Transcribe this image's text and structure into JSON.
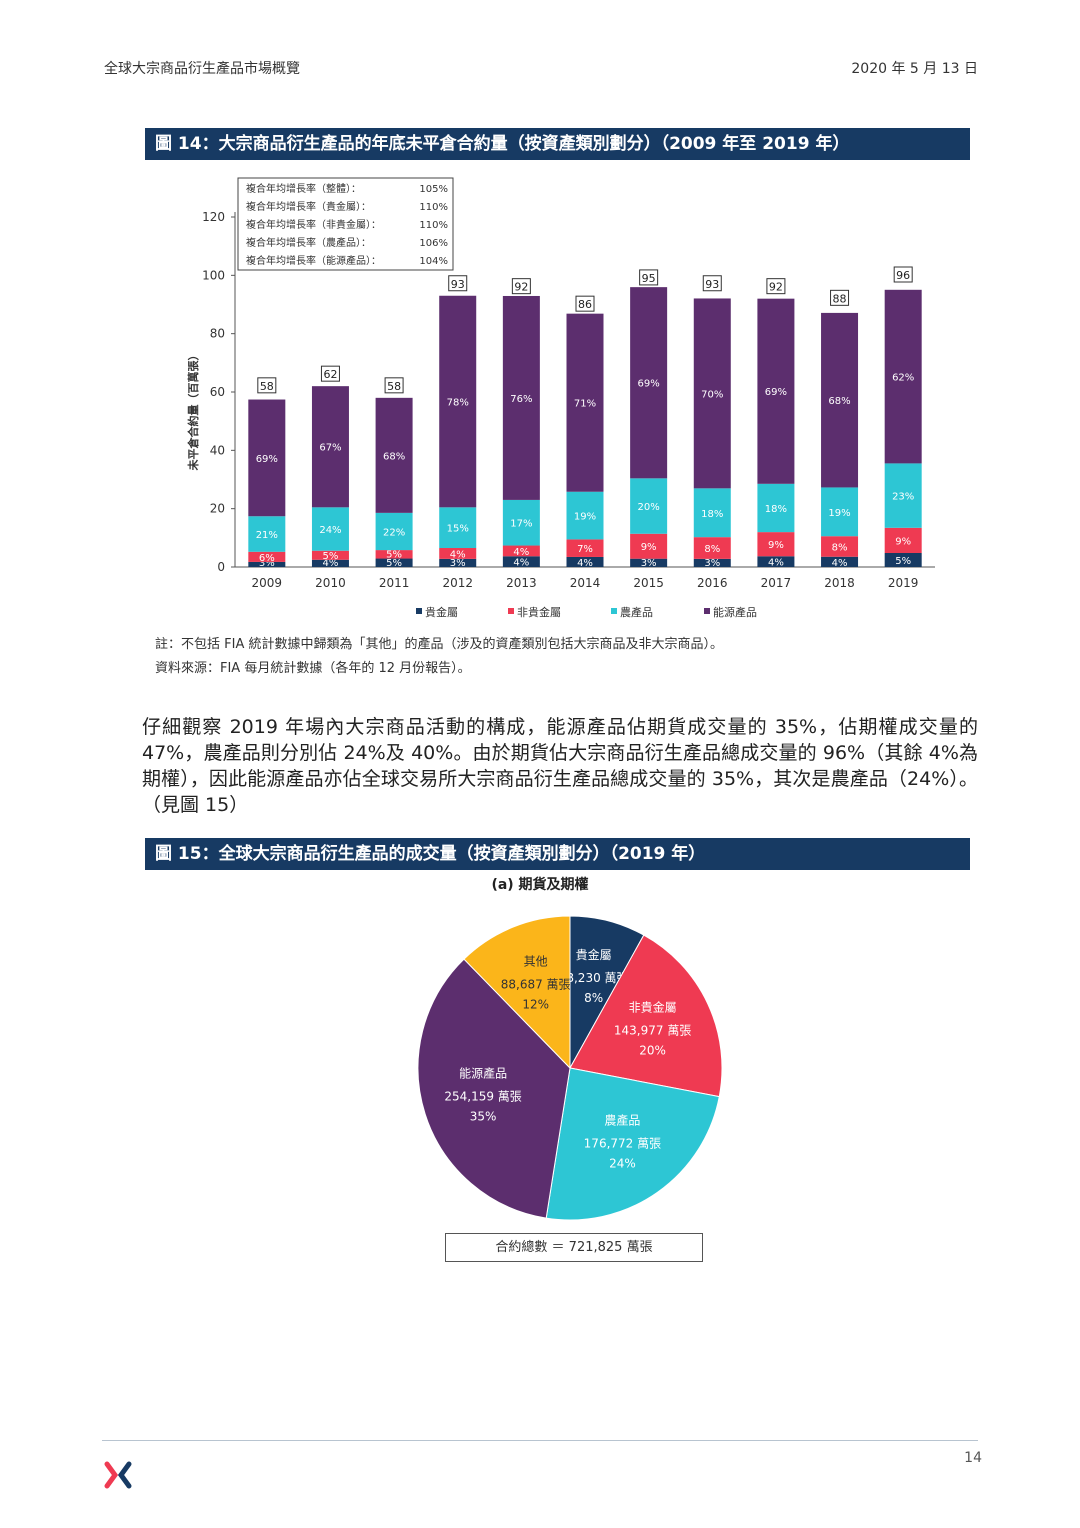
{
  "header": {
    "left": "全球大宗商品衍生產品市場概覽",
    "right": "2020 年 5 月 13 日"
  },
  "figure14": {
    "title": "圖 14：大宗商品衍生產品的年底未平倉合約量（按資產類別劃分）（2009 年至 2019 年）",
    "cagr_box": [
      {
        "label": "複合年均增長率（整體）：",
        "value": "105%"
      },
      {
        "label": "複合年均增長率（貴金屬）：",
        "value": "110%"
      },
      {
        "label": "複合年均增長率（非貴金屬）：",
        "value": "110%"
      },
      {
        "label": "複合年均增長率（農產品）：",
        "value": "106%"
      },
      {
        "label": "複合年均增長率（能源產品）：",
        "value": "104%"
      }
    ],
    "note": "註：不包括 FIA 統計數據中歸類為「其他」的產品（涉及的資產類別包括大宗商品及非大宗商品）。",
    "source": "資料來源：FIA 每月統計數據（各年的 12 月份報告）。"
  },
  "paragraph": "仔細觀察 2019 年場內大宗商品活動的構成，能源產品佔期貨成交量的 35%，佔期權成交量的 47%，農產品則分別佔 24%及 40%。由於期貨佔大宗商品衍生產品總成交量的 96%（其餘 4%為期權），因此能源產品亦佔全球交易所大宗商品衍生產品總成交量的 35%，其次是農產品（24%）。（見圖 15）",
  "figure15": {
    "title": "圖 15：全球大宗商品衍生產品的成交量（按資產類別劃分）（2019 年）",
    "subtitle": "(a)  期貨及期權",
    "total": "合約總數 ＝ 721,825 萬張"
  },
  "footer": {
    "page": "14"
  },
  "colors": {
    "precious": "#173a63",
    "nonprecious": "#ef3a52",
    "agri": "#2dc6d4",
    "energy": "#5c2e6e",
    "other": "#fbb51a",
    "title_bg": "#173a63"
  },
  "chart_data": [
    {
      "type": "bar",
      "stacked": true,
      "ylabel": "未平倉合約量（百萬張）",
      "ylim": [
        0,
        120
      ],
      "yticks": [
        0,
        20,
        40,
        60,
        80,
        100,
        120
      ],
      "categories": [
        "2009",
        "2010",
        "2011",
        "2012",
        "2013",
        "2014",
        "2015",
        "2016",
        "2017",
        "2018",
        "2019"
      ],
      "totals": [
        58,
        62,
        58,
        93,
        92,
        86,
        95,
        93,
        92,
        88,
        96
      ],
      "series": [
        {
          "name": "貴金屬",
          "color": "#173a63",
          "pct": [
            3,
            4,
            5,
            3,
            4,
            4,
            3,
            3,
            4,
            4,
            5
          ]
        },
        {
          "name": "非貴金屬",
          "color": "#ef3a52",
          "pct": [
            6,
            5,
            5,
            4,
            4,
            7,
            9,
            8,
            9,
            8,
            9
          ]
        },
        {
          "name": "農產品",
          "color": "#2dc6d4",
          "pct": [
            21,
            24,
            22,
            15,
            17,
            19,
            20,
            18,
            18,
            19,
            23
          ]
        },
        {
          "name": "能源產品",
          "color": "#5c2e6e",
          "pct": [
            69,
            67,
            68,
            78,
            76,
            71,
            69,
            70,
            69,
            68,
            62
          ]
        }
      ],
      "legend_position": "bottom"
    },
    {
      "type": "pie",
      "slices": [
        {
          "name": "貴金屬",
          "value_text": "58,230 萬張",
          "pct_text": "8%",
          "value": 58230,
          "color": "#173a63"
        },
        {
          "name": "非貴金屬",
          "value_text": "143,977 萬張",
          "pct_text": "20%",
          "value": 143977,
          "color": "#ef3a52"
        },
        {
          "name": "農產品",
          "value_text": "176,772 萬張",
          "pct_text": "24%",
          "value": 176772,
          "color": "#2dc6d4"
        },
        {
          "name": "能源產品",
          "value_text": "254,159 萬張",
          "pct_text": "35%",
          "value": 254159,
          "color": "#5c2e6e"
        },
        {
          "name": "其他",
          "value_text": "88,687 萬張",
          "pct_text": "12%",
          "value": 88687,
          "color": "#fbb51a"
        }
      ]
    }
  ]
}
